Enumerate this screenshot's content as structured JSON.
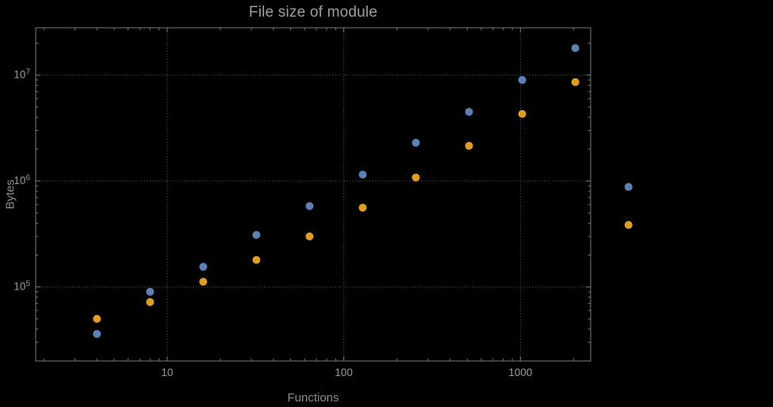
{
  "window": {
    "background": "#000000"
  },
  "chart_data": {
    "type": "scatter",
    "title": "File size of module",
    "xlabel": "Functions",
    "ylabel": "Bytes",
    "x_scale": "log",
    "y_scale": "log",
    "xlim": [
      1.8,
      2500
    ],
    "ylim": [
      20000,
      28000000
    ],
    "grid": "dotted",
    "legend": "none",
    "x_ticks": [
      10,
      100,
      1000
    ],
    "x_tick_labels": [
      "10",
      "100",
      "1000"
    ],
    "y_ticks": [
      100000,
      1000000,
      10000000
    ],
    "y_tick_base": "10",
    "y_tick_exponents": [
      "5",
      "6",
      "7"
    ],
    "x": [
      4,
      8,
      16,
      32,
      64,
      128,
      256,
      512,
      1024,
      2048,
      4096
    ],
    "series": [
      {
        "name": "blue-series",
        "color": "#5e81b5",
        "values": [
          36000,
          90000,
          155000,
          310000,
          580000,
          1150000,
          2300000,
          4500000,
          9000000,
          18000000,
          880000
        ]
      },
      {
        "name": "orange-series",
        "color": "#e09c24",
        "values": [
          50000,
          72000,
          112000,
          180000,
          300000,
          560000,
          1080000,
          2150000,
          4300000,
          8600000,
          385000
        ]
      }
    ],
    "colors": {
      "frame": "#787878",
      "grid": "#626262",
      "tick_label": "#9a9a9a",
      "title": "#9e9e9e",
      "axis_label": "#8c8c8c"
    }
  }
}
